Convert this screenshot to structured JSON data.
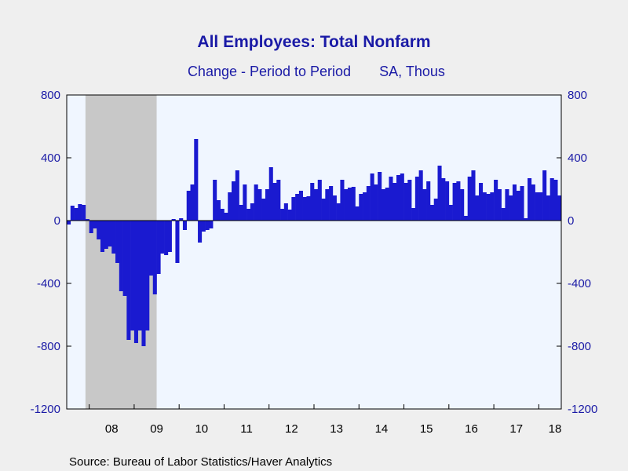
{
  "chart_data": {
    "type": "bar",
    "title": "All Employees: Total Nonfarm",
    "subtitle": "Change - Period to Period",
    "units": "SA, Thous",
    "source": "Source:  Bureau of Labor Statistics/Haver Analytics",
    "ylim": [
      -1200,
      800
    ],
    "y_ticks": [
      800,
      400,
      0,
      -400,
      -800,
      -1200
    ],
    "y_tick_labels": [
      "800",
      "400",
      "0",
      "-400",
      "-800",
      "-1200"
    ],
    "x_tick_labels": [
      "08",
      "09",
      "10",
      "11",
      "12",
      "13",
      "14",
      "15",
      "16",
      "17",
      "18"
    ],
    "x_start": "2007-07",
    "x_end": "2018-07",
    "recession": {
      "start": "2007-12",
      "end": "2009-06"
    },
    "colors": {
      "bar": "#1a1ad0",
      "recession": "#c8c8c8",
      "plot_bg": "#f0f6ff",
      "text": "#1a1aa6"
    },
    "grid": false,
    "series": [
      {
        "x": [
          "2007-07",
          "2007-08",
          "2007-09",
          "2007-10",
          "2007-11",
          "2007-12",
          "2008-01",
          "2008-02",
          "2008-03",
          "2008-04",
          "2008-05",
          "2008-06",
          "2008-07",
          "2008-08",
          "2008-09",
          "2008-10",
          "2008-11",
          "2008-12",
          "2009-01",
          "2009-02",
          "2009-03",
          "2009-04",
          "2009-05",
          "2009-06",
          "2009-07",
          "2009-08",
          "2009-09",
          "2009-10",
          "2009-11",
          "2009-12",
          "2010-01",
          "2010-02",
          "2010-03",
          "2010-04",
          "2010-05",
          "2010-06",
          "2010-07",
          "2010-08",
          "2010-09",
          "2010-10",
          "2010-11",
          "2010-12",
          "2011-01",
          "2011-02",
          "2011-03",
          "2011-04",
          "2011-05",
          "2011-06",
          "2011-07",
          "2011-08",
          "2011-09",
          "2011-10",
          "2011-11",
          "2011-12",
          "2012-01",
          "2012-02",
          "2012-03",
          "2012-04",
          "2012-05",
          "2012-06",
          "2012-07",
          "2012-08",
          "2012-09",
          "2012-10",
          "2012-11",
          "2012-12",
          "2013-01",
          "2013-02",
          "2013-03",
          "2013-04",
          "2013-05",
          "2013-06",
          "2013-07",
          "2013-08",
          "2013-09",
          "2013-10",
          "2013-11",
          "2013-12",
          "2014-01",
          "2014-02",
          "2014-03",
          "2014-04",
          "2014-05",
          "2014-06",
          "2014-07",
          "2014-08",
          "2014-09",
          "2014-10",
          "2014-11",
          "2014-12",
          "2015-01",
          "2015-02",
          "2015-03",
          "2015-04",
          "2015-05",
          "2015-06",
          "2015-07",
          "2015-08",
          "2015-09",
          "2015-10",
          "2015-11",
          "2015-12",
          "2016-01",
          "2016-02",
          "2016-03",
          "2016-04",
          "2016-05",
          "2016-06",
          "2016-07",
          "2016-08",
          "2016-09",
          "2016-10",
          "2016-11",
          "2016-12",
          "2017-01",
          "2017-02",
          "2017-03",
          "2017-04",
          "2017-05",
          "2017-06",
          "2017-07",
          "2017-08",
          "2017-09",
          "2017-10",
          "2017-11",
          "2017-12",
          "2018-01",
          "2018-02",
          "2018-03",
          "2018-04",
          "2018-05",
          "2018-06"
        ],
        "values": [
          -25,
          95,
          80,
          105,
          100,
          10,
          -80,
          -50,
          -120,
          -200,
          -180,
          -165,
          -210,
          -270,
          -450,
          -480,
          -760,
          -700,
          -780,
          -700,
          -800,
          -700,
          -350,
          -470,
          -340,
          -210,
          -220,
          -200,
          10,
          -270,
          15,
          -60,
          190,
          230,
          520,
          -140,
          -70,
          -60,
          -50,
          260,
          130,
          75,
          50,
          180,
          250,
          320,
          100,
          230,
          75,
          110,
          230,
          200,
          140,
          200,
          340,
          240,
          260,
          75,
          110,
          70,
          150,
          170,
          190,
          150,
          155,
          240,
          200,
          260,
          140,
          200,
          220,
          160,
          110,
          260,
          200,
          210,
          215,
          90,
          170,
          180,
          220,
          300,
          230,
          310,
          200,
          210,
          280,
          240,
          290,
          300,
          240,
          260,
          80,
          280,
          320,
          200,
          250,
          100,
          140,
          350,
          270,
          250,
          100,
          240,
          250,
          200,
          30,
          280,
          320,
          160,
          240,
          180,
          170,
          180,
          260,
          200,
          80,
          200,
          160,
          230,
          190,
          220,
          15,
          270,
          230,
          180,
          180,
          320,
          160,
          270,
          260,
          160
        ]
      }
    ]
  }
}
